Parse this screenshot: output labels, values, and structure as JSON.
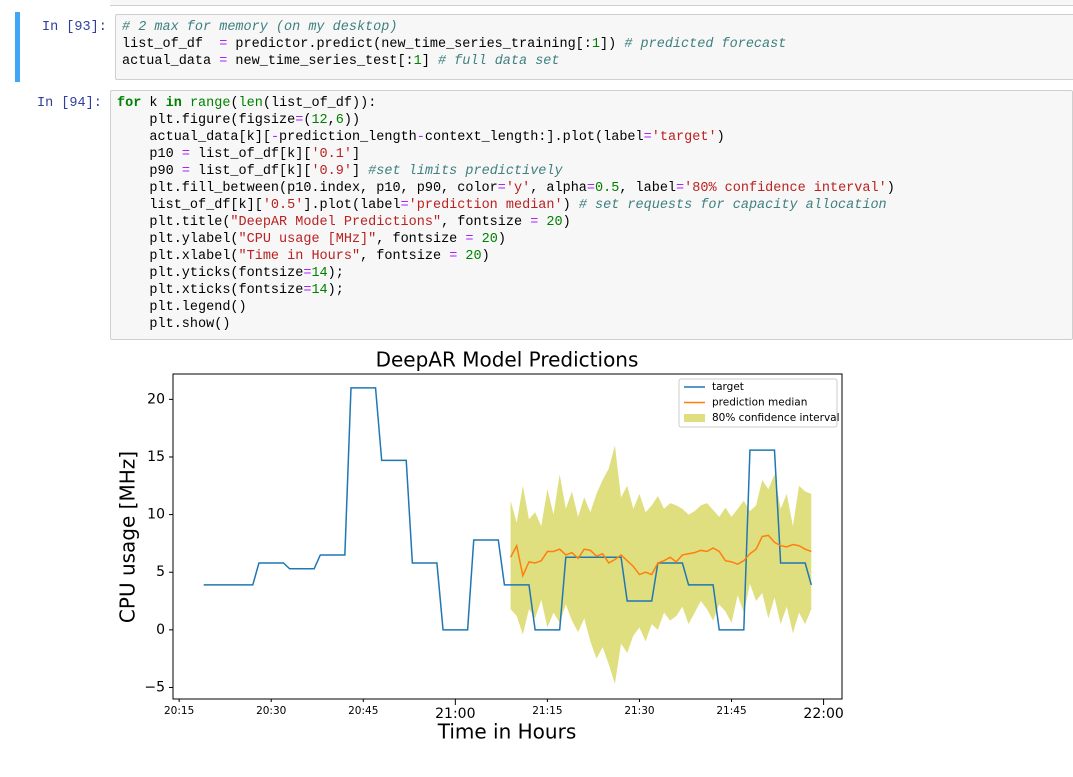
{
  "cells": [
    {
      "prompt": "In [93]:",
      "lines": [
        "# 2 max for memory (on my desktop)",
        "list_of_df  = predictor.predict(new_time_series_training[:1]) # predicted forecast",
        "actual_data = new_time_series_test[:1] # full data set"
      ]
    },
    {
      "prompt": "In [94]:",
      "lines": [
        "for k in range(len(list_of_df)):",
        "    plt.figure(figsize=(12,6))",
        "    actual_data[k][-prediction_length-context_length:].plot(label='target')",
        "    p10 = list_of_df[k]['0.1']",
        "    p90 = list_of_df[k]['0.9'] #set limits predictively",
        "    plt.fill_between(p10.index, p10, p90, color='y', alpha=0.5, label='80% confidence interval')",
        "    list_of_df[k]['0.5'].plot(label='prediction median') # set requests for capacity allocation",
        "    plt.title(\"DeepAR Model Predictions\", fontsize = 20)",
        "    plt.ylabel(\"CPU usage [MHz]\", fontsize = 20)",
        "    plt.xlabel(\"Time in Hours\", fontsize = 20)",
        "    plt.yticks(fontsize=14);",
        "    plt.xticks(fontsize=14);",
        "    plt.legend()",
        "    plt.show()"
      ]
    }
  ],
  "chart_data": {
    "type": "line",
    "title": "DeepAR Model Predictions",
    "y_label": "CPU usage [MHz]",
    "x_label": "Time in Hours",
    "xlim": [
      "20:14",
      "22:03"
    ],
    "xticks": [
      "20:15",
      "20:30",
      "20:45",
      "21:00",
      "21:15",
      "21:30",
      "21:45",
      "22:00"
    ],
    "ylim": [
      -6,
      22.2
    ],
    "yticks": [
      {
        "value": -5,
        "label": "−5"
      },
      0,
      5,
      10,
      15,
      20
    ],
    "grid": false,
    "legend": "upper right",
    "series": [
      {
        "name": "target",
        "color": "#1f77b4",
        "x": [
          "20:19",
          "20:27",
          "20:28",
          "20:32",
          "20:33",
          "20:37",
          "20:38",
          "20:42",
          "20:43",
          "20:47",
          "20:48",
          "20:52",
          "20:53",
          "20:57",
          "20:58",
          "21:02",
          "21:03",
          "21:07",
          "21:08",
          "21:12",
          "21:13",
          "21:17",
          "21:18",
          "21:27",
          "21:28",
          "21:32",
          "21:33",
          "21:37",
          "21:38",
          "21:42",
          "21:43",
          "21:47",
          "21:48",
          "21:52",
          "21:53",
          "21:57",
          "21:58"
        ],
        "values": [
          3.9,
          3.9,
          5.8,
          5.8,
          5.3,
          5.3,
          6.5,
          6.5,
          21,
          21,
          14.7,
          14.7,
          5.8,
          5.8,
          0,
          0,
          7.8,
          7.8,
          3.9,
          3.9,
          0,
          0,
          6.3,
          6.3,
          2.5,
          2.5,
          5.8,
          5.8,
          3.9,
          3.9,
          0,
          0,
          15.6,
          15.6,
          5.8,
          5.8,
          3.9
        ]
      },
      {
        "name": "prediction median",
        "color": "#ff7f0e",
        "x": [
          "21:09",
          "21:10",
          "21:11",
          "21:12",
          "21:13",
          "21:14",
          "21:15",
          "21:16",
          "21:17",
          "21:18",
          "21:19",
          "21:20",
          "21:21",
          "21:22",
          "21:23",
          "21:24",
          "21:25",
          "21:26",
          "21:27",
          "21:28",
          "21:29",
          "21:30",
          "21:31",
          "21:32",
          "21:33",
          "21:34",
          "21:35",
          "21:36",
          "21:37",
          "21:38",
          "21:39",
          "21:40",
          "21:41",
          "21:42",
          "21:43",
          "21:44",
          "21:45",
          "21:46",
          "21:47",
          "21:48",
          "21:49",
          "21:50",
          "21:51",
          "21:52",
          "21:53",
          "21:54",
          "21:55",
          "21:56",
          "21:57",
          "21:58"
        ],
        "values": [
          6.3,
          7.3,
          4.7,
          5.9,
          5.8,
          6.0,
          6.8,
          6.8,
          7.0,
          6.5,
          6.7,
          6.2,
          7.0,
          6.9,
          6.4,
          6.6,
          5.8,
          6.1,
          6.5,
          6.0,
          5.5,
          4.8,
          5.0,
          4.8,
          5.8,
          6.0,
          6.3,
          5.9,
          6.5,
          6.6,
          6.7,
          6.9,
          6.8,
          7.1,
          6.8,
          6.0,
          5.9,
          5.7,
          6.0,
          6.6,
          7.0,
          8.1,
          8.2,
          7.6,
          7.3,
          7.2,
          7.4,
          7.3,
          7.0,
          6.8
        ]
      },
      {
        "name": "80% confidence interval",
        "color": "#bfbf00",
        "alpha": 0.5,
        "x": [
          "21:09",
          "21:10",
          "21:11",
          "21:12",
          "21:13",
          "21:14",
          "21:15",
          "21:16",
          "21:17",
          "21:18",
          "21:19",
          "21:20",
          "21:21",
          "21:22",
          "21:23",
          "21:24",
          "21:25",
          "21:26",
          "21:27",
          "21:28",
          "21:29",
          "21:30",
          "21:31",
          "21:32",
          "21:33",
          "21:34",
          "21:35",
          "21:36",
          "21:37",
          "21:38",
          "21:39",
          "21:40",
          "21:41",
          "21:42",
          "21:43",
          "21:44",
          "21:45",
          "21:46",
          "21:47",
          "21:48",
          "21:49",
          "21:50",
          "21:51",
          "21:52",
          "21:53",
          "21:54",
          "21:55",
          "21:56",
          "21:57",
          "21:58"
        ],
        "low": [
          1.8,
          1.2,
          -0.4,
          1.8,
          1.0,
          2.6,
          0.2,
          1.5,
          0.6,
          2.2,
          0.8,
          -0.2,
          1.0,
          -1.0,
          -2.5,
          -1.5,
          -3.0,
          -4.7,
          -1.2,
          -2.0,
          -0.5,
          0.2,
          -1.0,
          0.5,
          0.0,
          1.5,
          0.8,
          1.2,
          2.0,
          0.5,
          1.5,
          2.5,
          1.8,
          0.8,
          2.2,
          1.6,
          0.6,
          3.0,
          1.5,
          4.0,
          2.5,
          3.2,
          1.0,
          2.8,
          0.5,
          2.0,
          -0.3,
          1.5,
          0.5,
          1.8
        ],
        "high": [
          11.2,
          9.3,
          12.5,
          9.6,
          10.2,
          9.0,
          12.2,
          10.0,
          13.5,
          10.5,
          12.0,
          9.8,
          11.5,
          10.2,
          11.8,
          13.0,
          14.0,
          16.0,
          11.5,
          12.5,
          10.5,
          11.8,
          10.2,
          10.8,
          11.6,
          10.5,
          11.0,
          10.8,
          10.5,
          10.0,
          10.3,
          10.8,
          11.0,
          10.4,
          9.8,
          10.6,
          9.8,
          10.5,
          11.2,
          10.3,
          10.8,
          13.0,
          12.2,
          13.5,
          10.5,
          11.8,
          9.0,
          12.5,
          12.0,
          11.8
        ]
      }
    ]
  }
}
